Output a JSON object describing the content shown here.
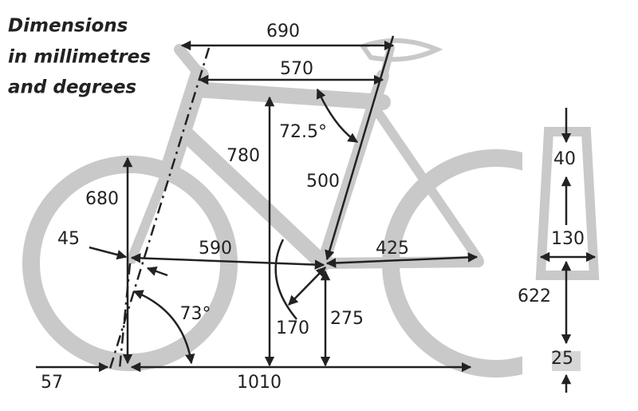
{
  "title": {
    "lines": [
      "Dimensions",
      "in millimetres",
      "and degrees"
    ]
  },
  "labels": {
    "top_tube_length": "690",
    "effective_top_tube": "570",
    "seat_angle": "72.5°",
    "stack": "780",
    "seat_tube": "500",
    "front_axle_height": "680",
    "fork_offset": "45",
    "front_centre": "590",
    "chainstay": "425",
    "head_angle": "73°",
    "crank_length": "170",
    "bb_height": "275",
    "trail": "57",
    "wheelbase": "1010",
    "rim_depth": "40",
    "hub_width": "130",
    "rim_diameter": "622",
    "tyre_width": "25"
  }
}
